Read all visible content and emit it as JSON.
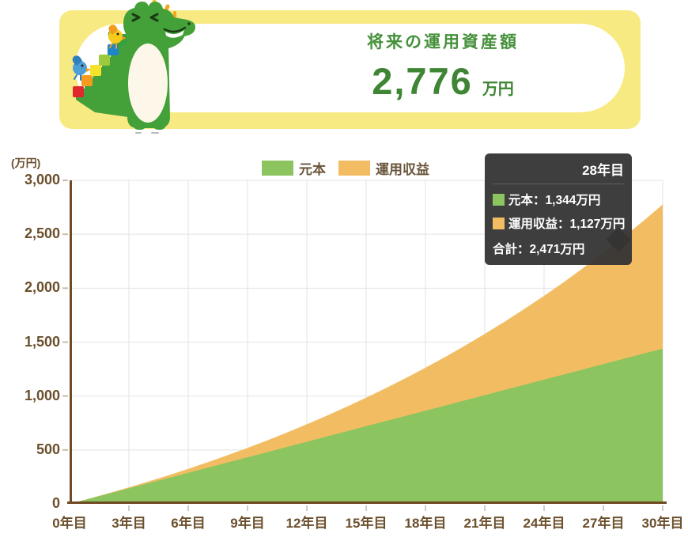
{
  "header": {
    "title": "将来の運用資産額",
    "amount": "2,776",
    "amount_unit": "万円"
  },
  "legend": {
    "items": [
      {
        "label": "元本",
        "color": "#8CC45F"
      },
      {
        "label": "運用収益",
        "color": "#F2BD62"
      }
    ]
  },
  "axis": {
    "unit_label": "(万円)",
    "y_ticks": [
      "3,000",
      "2,500",
      "2,000",
      "1,500",
      "1,000",
      "500",
      "0"
    ],
    "x_ticks": [
      "0年目",
      "3年目",
      "6年目",
      "9年目",
      "12年目",
      "15年目",
      "18年目",
      "21年目",
      "24年目",
      "27年目",
      "30年目"
    ]
  },
  "tooltip": {
    "title": "28年目",
    "separator": "：",
    "rows": [
      {
        "label": "元本",
        "value": "1,344万円",
        "color": "#8CC45F"
      },
      {
        "label": "運用収益",
        "value": "1,127万円",
        "color": "#F2BD62"
      }
    ],
    "total": {
      "label": "合計",
      "value": "2,471万円"
    }
  },
  "colors": {
    "banner_yellow": "#F8EA82",
    "title_green": "#45913B",
    "axis_brown": "#6F4A23",
    "label_brown": "#6B4F2C",
    "grid_gray": "#E3E3E3",
    "tooltip_bg": "#343434"
  },
  "chart_data": {
    "type": "area",
    "stacked": true,
    "title": "将来の運用資産額",
    "xlabel": "年目",
    "ylabel": "万円",
    "x": [
      0,
      1,
      2,
      3,
      4,
      5,
      6,
      7,
      8,
      9,
      10,
      11,
      12,
      13,
      14,
      15,
      16,
      17,
      18,
      19,
      20,
      21,
      22,
      23,
      24,
      25,
      26,
      27,
      28,
      29,
      30
    ],
    "series": [
      {
        "name": "元本",
        "color": "#8CC45F",
        "values": [
          0,
          48,
          96,
          144,
          192,
          240,
          288,
          336,
          384,
          432,
          480,
          528,
          576,
          624,
          672,
          720,
          768,
          816,
          864,
          912,
          960,
          1008,
          1056,
          1104,
          1152,
          1200,
          1248,
          1296,
          1344,
          1392,
          1440
        ]
      },
      {
        "name": "運用収益",
        "color": "#F2BD62",
        "values": [
          0,
          1,
          4,
          9,
          16,
          25,
          37,
          51,
          68,
          87,
          109,
          134,
          162,
          193,
          227,
          264,
          306,
          350,
          398,
          451,
          507,
          568,
          633,
          703,
          777,
          857,
          942,
          1032,
          1127,
          1229,
          1336
        ]
      }
    ],
    "ylim": [
      0,
      3000
    ],
    "ytick_step": 500,
    "xtick_step": 3,
    "grid": true,
    "legend_position": "top",
    "highlight_x": 28,
    "totals_at_highlight": 2471,
    "final_total": 2776
  }
}
